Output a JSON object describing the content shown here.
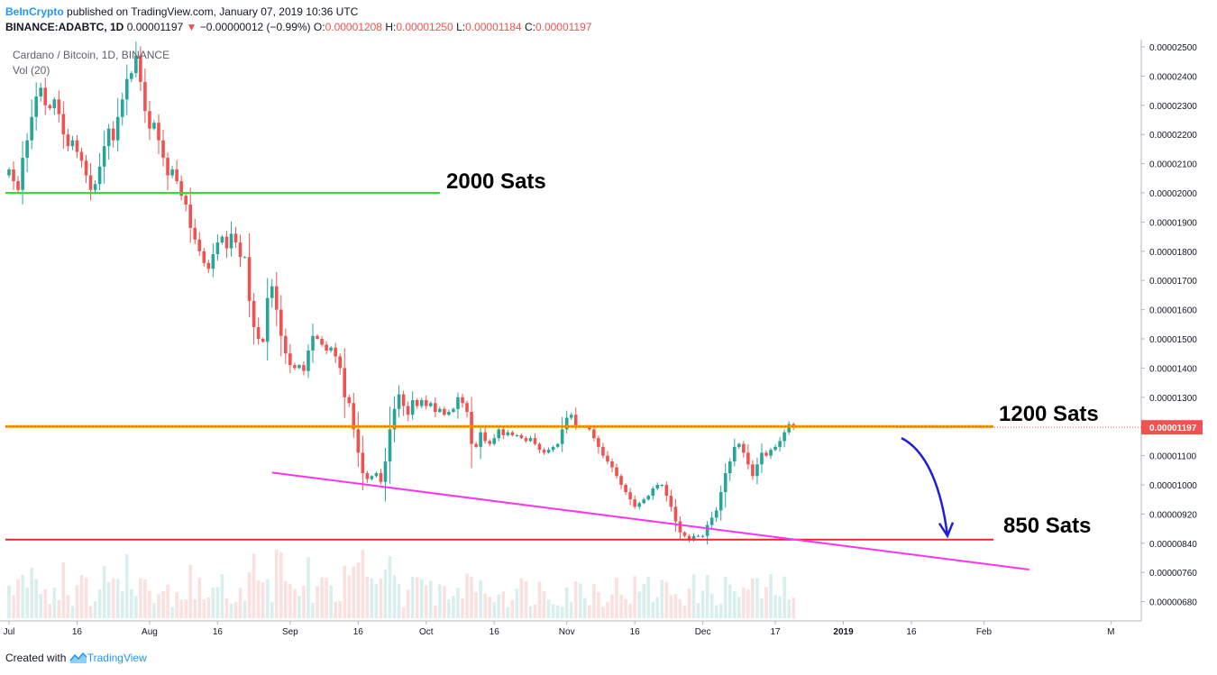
{
  "header": {
    "brand": "BeInCrypto",
    "published_text": "published on TradingView.com, January 07, 2019 10:36 UTC",
    "symbol": "BINANCE:ADABTC, 1D",
    "last": "0.00001197",
    "change_arrow": "▼",
    "change": "−0.00000012 (−0.99%)",
    "o_label": "O:",
    "o_value": "0.00001208",
    "h_label": "H:",
    "h_value": "0.00001250",
    "l_label": "L:",
    "l_value": "0.00001184",
    "c_label": "C:",
    "c_value": "0.00001197"
  },
  "legend": {
    "pair": "Cardano / Bitcoin, 1D, BINANCE",
    "volume": "Vol (20)"
  },
  "footer": {
    "created_with": "Created with",
    "tradingview": "TradingView"
  },
  "chart_data": {
    "type": "candlestick",
    "x_tick_labels": [
      "Jul",
      "16",
      "Aug",
      "16",
      "Sep",
      "16",
      "Oct",
      "16",
      "Nov",
      "16",
      "Dec",
      "17",
      "2019",
      "16",
      "Feb",
      "M"
    ],
    "y_tick_labels": [
      "0.00002500",
      "0.00002400",
      "0.00002300",
      "0.00002200",
      "0.00002100",
      "0.00002000",
      "0.00001900",
      "0.00001800",
      "0.00001700",
      "0.00001600",
      "0.00001500",
      "0.00001400",
      "0.00001300",
      "0.00001200",
      "0.00001100",
      "0.00001000",
      "0.00000920",
      "0.00000840",
      "0.00000760",
      "0.00000680"
    ],
    "y_ticks": [
      2500,
      2400,
      2300,
      2200,
      2100,
      2000,
      1900,
      1800,
      1700,
      1600,
      1500,
      1400,
      1300,
      1200,
      1100,
      1000,
      920,
      840,
      760,
      680
    ],
    "y_unit": "satoshi",
    "last_price_label": "0.00001197",
    "last_price": 1197,
    "close_series_approx": [
      2080,
      2040,
      2010,
      2120,
      2180,
      2260,
      2330,
      2360,
      2300,
      2290,
      2320,
      2270,
      2200,
      2160,
      2180,
      2140,
      2110,
      2060,
      2010,
      2030,
      2090,
      2160,
      2220,
      2180,
      2260,
      2320,
      2390,
      2410,
      2470,
      2380,
      2280,
      2220,
      2240,
      2180,
      2120,
      2060,
      2080,
      2040,
      1990,
      1960,
      1880,
      1840,
      1800,
      1760,
      1740,
      1790,
      1830,
      1850,
      1810,
      1860,
      1830,
      1780,
      1780,
      1630,
      1540,
      1500,
      1490,
      1640,
      1680,
      1600,
      1510,
      1450,
      1410,
      1400,
      1410,
      1390,
      1460,
      1510,
      1500,
      1480,
      1460,
      1470,
      1440,
      1400,
      1300,
      1280,
      1190,
      1110,
      1040,
      1020,
      1030,
      1040,
      1010,
      1080,
      1190,
      1260,
      1310,
      1270,
      1240,
      1290,
      1270,
      1290,
      1270,
      1280,
      1250,
      1260,
      1240,
      1250,
      1260,
      1300,
      1280,
      1250,
      1140,
      1130,
      1180,
      1150,
      1140,
      1160,
      1190,
      1170,
      1180,
      1170,
      1170,
      1160,
      1150,
      1160,
      1140,
      1120,
      1110,
      1120,
      1130,
      1140,
      1190,
      1230,
      1240,
      1200,
      1200,
      1200,
      1190,
      1160,
      1130,
      1100,
      1080,
      1060,
      1030,
      1000,
      980,
      960,
      940,
      950,
      960,
      970,
      990,
      1000,
      1000,
      970,
      940,
      900,
      870,
      860,
      850,
      860,
      860,
      860,
      890,
      910,
      930,
      980,
      1040,
      1080,
      1130,
      1140,
      1110,
      1070,
      1030,
      1070,
      1110,
      1100,
      1120,
      1130,
      1150,
      1180,
      1208,
      1197
    ],
    "horizontal_levels": [
      {
        "label": "2000 Sats",
        "price": 2000,
        "color": "#33dd33"
      },
      {
        "label": "1200 Sats",
        "price": 1200,
        "color": "#ff9800"
      },
      {
        "label": "850 Sats",
        "price": 850,
        "color": "#e52a2a"
      }
    ],
    "trendline": {
      "color": "#ff33ee",
      "from": {
        "date": "2018-08-28",
        "price": 1042
      },
      "to": {
        "date": "2019-02-11",
        "price": 768
      }
    },
    "projection_arrow": {
      "color": "#1f1fd6",
      "from_price": 1160,
      "to_price": 860
    },
    "colors": {
      "up": "#26a69a",
      "down": "#ef5350"
    }
  }
}
